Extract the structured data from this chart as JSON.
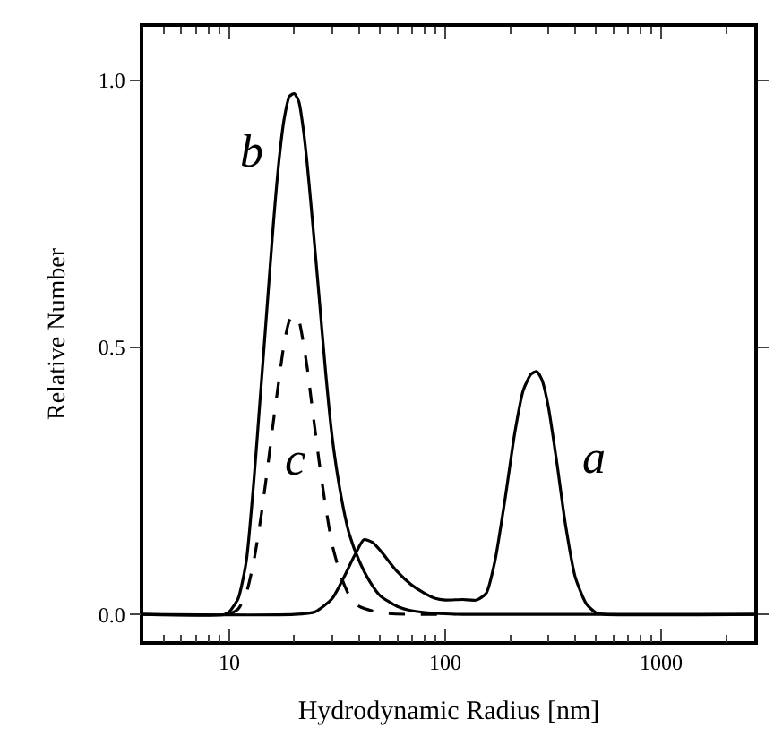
{
  "chart_data": {
    "type": "line",
    "xlabel": "Hydrodynamic Radius [nm]",
    "ylabel": "Relative Number",
    "log": "x",
    "xlim": [
      4,
      2700
    ],
    "xticks": [
      10,
      100,
      1000
    ],
    "ylim": [
      -0.05,
      1.1
    ],
    "yticks": [
      {
        "value": 0,
        "label": "0.0"
      },
      {
        "value": 0.5,
        "label": "0.5"
      },
      {
        "value": 1,
        "label": "1.0"
      }
    ],
    "legend": false,
    "marker": "none",
    "series": [
      {
        "name": "b",
        "color": "#000000",
        "line_style": "solid",
        "x": [
          4,
          9.5,
          10,
          11,
          12,
          13,
          14,
          15,
          16,
          17,
          18,
          19,
          20,
          21,
          22,
          23,
          24,
          26,
          28,
          30,
          33,
          36,
          40,
          45,
          50,
          60,
          70,
          90,
          120,
          2700
        ],
        "values": [
          0,
          0,
          0.005,
          0.03,
          0.1,
          0.25,
          0.42,
          0.58,
          0.73,
          0.85,
          0.93,
          0.97,
          0.975,
          0.96,
          0.91,
          0.84,
          0.76,
          0.6,
          0.45,
          0.33,
          0.22,
          0.15,
          0.1,
          0.06,
          0.035,
          0.015,
          0.007,
          0.002,
          0,
          0
        ]
      },
      {
        "name": "c",
        "color": "#000000",
        "line_style": "dashed",
        "x": [
          10,
          11,
          12,
          13,
          14,
          15,
          16,
          17,
          18,
          19,
          20,
          21,
          22,
          23,
          24,
          26,
          28,
          30,
          33,
          36,
          40,
          50,
          70,
          100
        ],
        "values": [
          0,
          0.01,
          0.04,
          0.1,
          0.18,
          0.27,
          0.36,
          0.44,
          0.51,
          0.55,
          0.56,
          0.55,
          0.51,
          0.46,
          0.4,
          0.29,
          0.2,
          0.13,
          0.07,
          0.035,
          0.015,
          0.003,
          0,
          0
        ]
      },
      {
        "name": "a",
        "color": "#000000",
        "line_style": "solid",
        "x": [
          4,
          20,
          25,
          30,
          34,
          38,
          42,
          46,
          50,
          60,
          70,
          80,
          90,
          100,
          120,
          140,
          155,
          170,
          190,
          210,
          230,
          250,
          265,
          280,
          300,
          330,
          360,
          400,
          450,
          500,
          550,
          2700
        ],
        "values": [
          0,
          0,
          0.005,
          0.03,
          0.07,
          0.11,
          0.14,
          0.135,
          0.12,
          0.08,
          0.055,
          0.04,
          0.03,
          0.027,
          0.028,
          0.027,
          0.04,
          0.1,
          0.22,
          0.34,
          0.42,
          0.45,
          0.455,
          0.44,
          0.39,
          0.28,
          0.17,
          0.07,
          0.02,
          0.003,
          0,
          0
        ]
      }
    ]
  }
}
